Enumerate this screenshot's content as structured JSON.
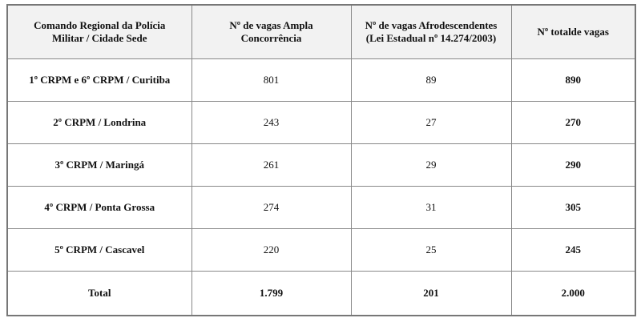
{
  "table": {
    "header": [
      [
        "Comando Regional da Polícia",
        "Militar / Cidade Sede"
      ],
      [
        "Nº de vagas Ampla",
        "Concorrência"
      ],
      [
        "Nº de vagas Afrodescendentes",
        "(Lei Estadual nº 14.274/2003)"
      ],
      [
        "Nº totalde vagas"
      ]
    ],
    "rows": [
      [
        "1º CRPM e 6º CRPM / Curitiba",
        "801",
        "89",
        "890"
      ],
      [
        "2º CRPM / Londrina",
        "243",
        "27",
        "270"
      ],
      [
        "3º CRPM / Maringá",
        "261",
        "29",
        "290"
      ],
      [
        "4º CRPM / Ponta Grossa",
        "274",
        "31",
        "305"
      ],
      [
        "5º CRPM / Cascavel",
        "220",
        "25",
        "245"
      ]
    ],
    "total": [
      "Total",
      "1.799",
      "201",
      "2.000"
    ]
  }
}
